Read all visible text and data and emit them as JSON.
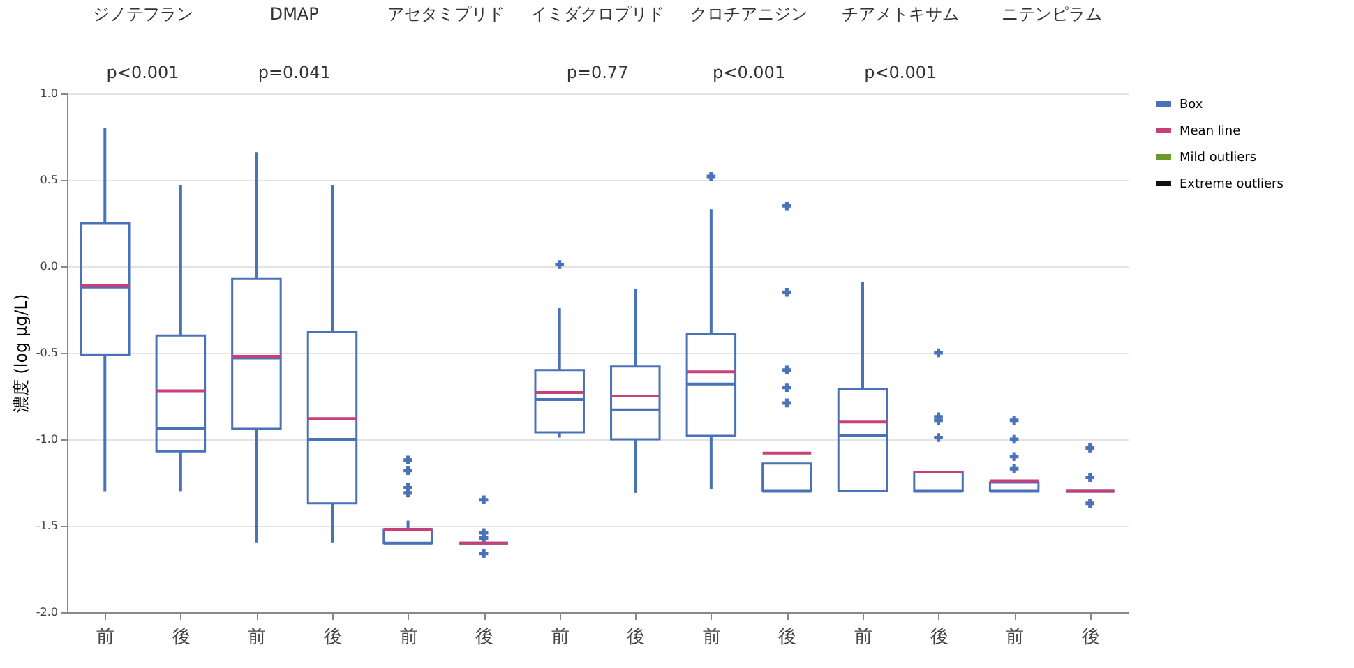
{
  "chart_data": {
    "type": "box",
    "categories": [
      "前",
      "後",
      "前",
      "後",
      "前",
      "後",
      "前",
      "後",
      "前",
      "後",
      "前",
      "後",
      "前",
      "後"
    ],
    "ylabel": "濃度 (log µg/L)",
    "ylim": [
      -2,
      1
    ],
    "yticks": [
      {
        "value": -2,
        "label": "-2.0"
      },
      {
        "value": -1.5,
        "label": "-1.5"
      },
      {
        "value": -1,
        "label": "-1.0"
      },
      {
        "value": -0.5,
        "label": "-0.5"
      },
      {
        "value": 0,
        "label": "0.0"
      },
      {
        "value": 0.5,
        "label": "0.5"
      },
      {
        "value": 1,
        "label": "1.0"
      }
    ],
    "grid": "y",
    "legend": "right",
    "annotations": [
      "ジノテフラン",
      "DMAP",
      "アセタミプリド",
      "イミダクロプリド",
      "クロチアニジン",
      "チアメトキサム",
      "ニテンピラム",
      "p<0.001",
      "p=0.041",
      "p=0.77",
      "p<0.001",
      "p<0.001"
    ],
    "series": [
      {
        "name": "Box",
        "color": "#4a72b8",
        "boxes": [
          {
            "low": -1.3,
            "q1": -0.51,
            "median": -0.12,
            "q3": 0.25,
            "high": 0.8,
            "mean": -0.11
          },
          {
            "low": -1.3,
            "q1": -1.07,
            "median": -0.94,
            "q3": -0.4,
            "high": 0.47,
            "mean": -0.72
          },
          {
            "low": -1.6,
            "q1": -0.94,
            "median": -0.53,
            "q3": -0.07,
            "high": 0.66,
            "mean": -0.52
          },
          {
            "low": -1.6,
            "q1": -1.37,
            "median": -1.0,
            "q3": -0.38,
            "high": 0.47,
            "mean": -0.88
          },
          {
            "low": -1.6,
            "q1": -1.6,
            "median": -1.6,
            "q3": -1.52,
            "high": -1.47,
            "mean": -1.52,
            "outliers": [
              -1.31,
              -1.12,
              -1.18,
              -1.28
            ]
          },
          {
            "low": -1.6,
            "q1": -1.6,
            "median": -1.6,
            "q3": -1.6,
            "high": -1.6,
            "mean": -1.6,
            "outliers": [
              -1.35,
              -1.54,
              -1.57,
              -1.66
            ]
          },
          {
            "low": -0.99,
            "q1": -0.96,
            "median": -0.77,
            "q3": -0.6,
            "high": -0.24,
            "mean": -0.73,
            "outliers": [
              0.01
            ]
          },
          {
            "low": -1.31,
            "q1": -1.0,
            "median": -0.83,
            "q3": -0.58,
            "high": -0.13,
            "mean": -0.75
          },
          {
            "low": -1.29,
            "q1": -0.98,
            "median": -0.68,
            "q3": -0.39,
            "high": 0.33,
            "mean": -0.61,
            "outliers": [
              0.52
            ]
          },
          {
            "low": -1.3,
            "q1": -1.3,
            "median": -1.3,
            "q3": -1.14,
            "high": -1.14,
            "mean": -1.08,
            "outliers": [
              -0.7,
              -0.79,
              0.35,
              -0.15,
              -0.6
            ]
          },
          {
            "low": -1.3,
            "q1": -1.3,
            "median": -0.98,
            "q3": -0.71,
            "high": -0.09,
            "mean": -0.9
          },
          {
            "low": -1.3,
            "q1": -1.3,
            "median": -1.3,
            "q3": -1.19,
            "high": -1.19,
            "mean": -1.19,
            "outliers": [
              -0.99,
              -0.5,
              -0.87,
              -0.89
            ]
          },
          {
            "low": -1.3,
            "q1": -1.3,
            "median": -1.3,
            "q3": -1.25,
            "high": -1.25,
            "mean": -1.24,
            "outliers": [
              -1.17,
              -0.89,
              -1.0,
              -1.1
            ]
          },
          {
            "low": -1.3,
            "q1": -1.3,
            "median": -1.3,
            "q3": -1.3,
            "high": -1.3,
            "mean": -1.3,
            "outliers": [
              -1.05,
              -1.22,
              -1.37
            ]
          }
        ]
      },
      {
        "name": "Mean line",
        "color": "#c8407a",
        "values": [
          null,
          null,
          null,
          null,
          null,
          null,
          null,
          null,
          null,
          null,
          null,
          null,
          null,
          null
        ]
      },
      {
        "name": "Mild outliers",
        "color": "#6a9a2a",
        "values": [
          null,
          null,
          null,
          null,
          null,
          null,
          null,
          null,
          null,
          null,
          null,
          null,
          null,
          null
        ]
      },
      {
        "name": "Extreme outliers",
        "color": "#111111",
        "values": [
          null,
          null,
          null,
          null,
          null,
          null,
          null,
          null,
          null,
          null,
          null,
          null,
          null,
          null
        ]
      }
    ]
  }
}
